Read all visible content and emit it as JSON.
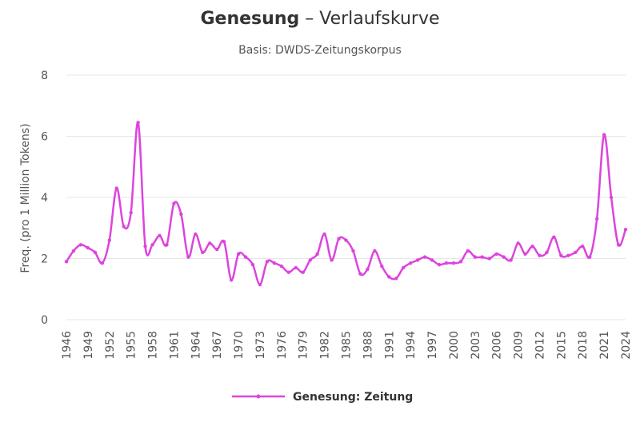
{
  "title_word": "Genesung",
  "title_rest": " – Verlaufskurve",
  "subtitle": "Basis: DWDS-Zeitungskorpus",
  "chart_data": {
    "type": "line",
    "title": "Genesung – Verlaufskurve",
    "subtitle": "Basis: DWDS-Zeitungskorpus",
    "xlabel": "",
    "ylabel": "Freq. (pro 1 Million Tokens)",
    "ylim": [
      0,
      8
    ],
    "yticks": [
      "0",
      "2",
      "4",
      "6",
      "8"
    ],
    "xticks": [
      "1946",
      "1949",
      "1952",
      "1955",
      "1958",
      "1961",
      "1964",
      "1967",
      "1970",
      "1973",
      "1976",
      "1979",
      "1982",
      "1985",
      "1988",
      "1991",
      "1994",
      "1997",
      "2000",
      "2003",
      "2006",
      "2009",
      "2012",
      "2015",
      "2018",
      "2021",
      "2024"
    ],
    "grid": true,
    "legend_position": "bottom",
    "series": [
      {
        "name": "Genesung: Zeitung",
        "color": "#dd44dd",
        "x": [
          1946,
          1947,
          1948,
          1949,
          1950,
          1951,
          1952,
          1953,
          1954,
          1955,
          1956,
          1957,
          1958,
          1959,
          1960,
          1961,
          1962,
          1963,
          1964,
          1965,
          1966,
          1967,
          1968,
          1969,
          1970,
          1971,
          1972,
          1973,
          1974,
          1975,
          1976,
          1977,
          1978,
          1979,
          1980,
          1981,
          1982,
          1983,
          1984,
          1985,
          1986,
          1987,
          1988,
          1989,
          1990,
          1991,
          1992,
          1993,
          1994,
          1995,
          1996,
          1997,
          1998,
          1999,
          2000,
          2001,
          2002,
          2003,
          2004,
          2005,
          2006,
          2007,
          2008,
          2009,
          2010,
          2011,
          2012,
          2013,
          2014,
          2015,
          2016,
          2017,
          2018,
          2019,
          2020,
          2021,
          2022,
          2023,
          2024
        ],
        "values": [
          1.9,
          2.25,
          2.45,
          2.35,
          2.2,
          1.85,
          2.6,
          4.3,
          3.05,
          3.5,
          6.45,
          2.4,
          2.45,
          2.75,
          2.45,
          3.8,
          3.45,
          2.05,
          2.8,
          2.2,
          2.5,
          2.3,
          2.55,
          1.3,
          2.15,
          2.05,
          1.8,
          1.15,
          1.9,
          1.85,
          1.75,
          1.55,
          1.7,
          1.55,
          1.95,
          2.15,
          2.8,
          1.95,
          2.65,
          2.6,
          2.25,
          1.5,
          1.65,
          2.25,
          1.75,
          1.4,
          1.35,
          1.7,
          1.85,
          1.95,
          2.05,
          1.95,
          1.8,
          1.85,
          1.85,
          1.9,
          2.25,
          2.05,
          2.05,
          2.0,
          2.15,
          2.05,
          1.95,
          2.5,
          2.15,
          2.4,
          2.1,
          2.2,
          2.7,
          2.1,
          2.1,
          2.2,
          2.4,
          2.05,
          3.3,
          6.05,
          4.0,
          2.45,
          2.95
        ]
      }
    ]
  }
}
